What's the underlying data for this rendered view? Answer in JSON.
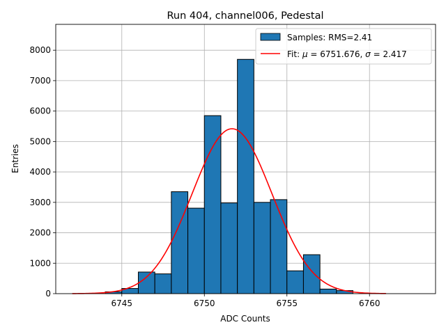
{
  "chart_data": {
    "type": "bar",
    "title": "Run 404, channel006, Pedestal",
    "xlabel": "ADC Counts",
    "ylabel": "Entries",
    "xlim": [
      6741.0,
      6764.0
    ],
    "ylim": [
      0,
      8850
    ],
    "xticks": [
      6745,
      6750,
      6755,
      6760
    ],
    "yticks": [
      0,
      1000,
      2000,
      3000,
      4000,
      5000,
      6000,
      7000,
      8000
    ],
    "grid": true,
    "legend_position": "top-right",
    "bin_edges": [
      6742,
      6743,
      6744,
      6745,
      6746,
      6747,
      6748,
      6749,
      6750,
      6751,
      6752,
      6753,
      6754,
      6755,
      6756,
      6757,
      6758,
      6759,
      6760,
      6761,
      6762,
      6763
    ],
    "series": [
      {
        "name": "Samples: RMS=2.41",
        "kind": "histogram",
        "color": "#1f77b4",
        "values": [
          0,
          0,
          60,
          170,
          710,
          650,
          3350,
          2810,
          5850,
          2980,
          7700,
          3000,
          3090,
          750,
          1280,
          150,
          100,
          0,
          0,
          0,
          0
        ]
      },
      {
        "name_prefix": "Fit: ",
        "name_mu": "μ",
        "name_mu_value": " = 6751.676, ",
        "name_sigma": "σ",
        "name_sigma_value": " = 2.417",
        "kind": "gaussian",
        "color": "#ff0000",
        "mu": 6751.676,
        "sigma": 2.417,
        "amplitude": 5420,
        "range": [
          6742,
          6761
        ]
      }
    ]
  }
}
